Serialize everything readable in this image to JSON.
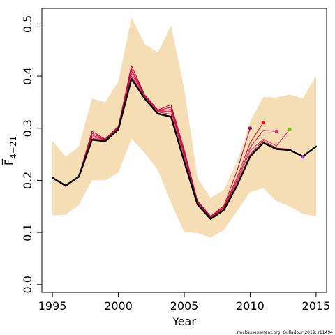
{
  "chart_data": {
    "type": "line",
    "xlabel": "Year",
    "ylabel": "F̅",
    "ylabel_sub": "4−21",
    "xlim": [
      1994.2,
      2015.8
    ],
    "ylim": [
      -0.015,
      0.53
    ],
    "xticks": [
      1995,
      2000,
      2005,
      2010,
      2015
    ],
    "yticks": [
      0.0,
      0.1,
      0.2,
      0.3,
      0.4,
      0.5
    ],
    "ytick_labels": [
      "0.0",
      "0.1",
      "0.2",
      "0.3",
      "0.4",
      "0.5"
    ],
    "grid": false,
    "band_color": "#f5deb3",
    "confidence_band": {
      "x": [
        1995,
        1996,
        1997,
        1998,
        1999,
        2000,
        2001,
        2002,
        2003,
        2004,
        2005,
        2006,
        2007,
        2008,
        2009,
        2010,
        2011,
        2012,
        2013,
        2014,
        2015
      ],
      "lower": [
        0.133,
        0.134,
        0.153,
        0.2,
        0.2,
        0.215,
        0.28,
        0.253,
        0.22,
        0.157,
        0.101,
        0.099,
        0.09,
        0.105,
        0.141,
        0.178,
        0.185,
        0.16,
        0.15,
        0.136,
        0.131
      ],
      "upper": [
        0.276,
        0.245,
        0.265,
        0.357,
        0.35,
        0.39,
        0.512,
        0.462,
        0.445,
        0.497,
        0.375,
        0.205,
        0.166,
        0.182,
        0.235,
        0.313,
        0.36,
        0.359,
        0.365,
        0.357,
        0.401
      ]
    },
    "series": [
      {
        "color": "#000000",
        "width": 2.4,
        "x": [
          1995,
          1996,
          1997,
          1998,
          1999,
          2000,
          2001,
          2002,
          2003,
          2004,
          2005,
          2006,
          2007,
          2008,
          2009,
          2010,
          2011,
          2012,
          2013,
          2014,
          2015
        ],
        "y": [
          0.205,
          0.19,
          0.207,
          0.278,
          0.275,
          0.298,
          0.395,
          0.357,
          0.328,
          0.322,
          0.236,
          0.154,
          0.126,
          0.143,
          0.19,
          0.246,
          0.272,
          0.26,
          0.258,
          0.246,
          0.265
        ]
      },
      {
        "color": "#c2185b",
        "width": 1,
        "x": [
          1995,
          1996,
          1997,
          1998,
          1999,
          2000,
          2001,
          2002,
          2003,
          2004,
          2005,
          2006,
          2007,
          2008,
          2009,
          2010,
          2011,
          2012,
          2013,
          2014
        ],
        "y": [
          0.205,
          0.19,
          0.207,
          0.281,
          0.276,
          0.3,
          0.4,
          0.359,
          0.331,
          0.327,
          0.24,
          0.156,
          0.127,
          0.144,
          0.192,
          0.25,
          0.276,
          0.262,
          0.26,
          0.245
        ],
        "end_marker": true
      },
      {
        "color": "#e6286b",
        "width": 1,
        "x": [
          1995,
          1996,
          1997,
          1998,
          1999,
          2000,
          2001,
          2002,
          2003,
          2004,
          2005,
          2006,
          2007,
          2008,
          2009,
          2010,
          2011,
          2012,
          2013
        ],
        "y": [
          0.205,
          0.189,
          0.207,
          0.284,
          0.276,
          0.301,
          0.405,
          0.361,
          0.332,
          0.333,
          0.246,
          0.158,
          0.128,
          0.146,
          0.196,
          0.257,
          0.279,
          0.266,
          0.298
        ],
        "end_marker": true,
        "end_color": "#66cc00"
      },
      {
        "color": "#c0185a",
        "width": 1,
        "x": [
          1995,
          1996,
          1997,
          1998,
          1999,
          2000,
          2001,
          2002,
          2003,
          2004,
          2005,
          2006,
          2007,
          2008,
          2009,
          2010,
          2011,
          2012
        ],
        "y": [
          0.206,
          0.189,
          0.207,
          0.287,
          0.277,
          0.302,
          0.41,
          0.362,
          0.333,
          0.336,
          0.25,
          0.159,
          0.129,
          0.147,
          0.2,
          0.263,
          0.296,
          0.294
        ],
        "end_marker": true,
        "end_color": "#e6286b"
      },
      {
        "color": "#e6001f",
        "width": 1,
        "x": [
          1995,
          1996,
          1997,
          1998,
          1999,
          2000,
          2001,
          2002,
          2003,
          2004,
          2005,
          2006,
          2007,
          2008,
          2009,
          2010,
          2011
        ],
        "y": [
          0.206,
          0.188,
          0.208,
          0.29,
          0.278,
          0.303,
          0.414,
          0.363,
          0.334,
          0.34,
          0.254,
          0.16,
          0.13,
          0.149,
          0.205,
          0.272,
          0.311
        ],
        "end_marker": true,
        "end_color": "#ff0000"
      },
      {
        "color": "#b0004a",
        "width": 1,
        "x": [
          1995,
          1996,
          1997,
          1998,
          1999,
          2000,
          2001,
          2002,
          2003,
          2004,
          2005,
          2006,
          2007,
          2008,
          2009,
          2010
        ],
        "y": [
          0.206,
          0.188,
          0.208,
          0.294,
          0.279,
          0.304,
          0.42,
          0.364,
          0.335,
          0.345,
          0.258,
          0.161,
          0.131,
          0.151,
          0.218,
          0.3
        ],
        "end_marker": true,
        "end_color": "#a0005a"
      }
    ],
    "end_markers": [
      {
        "x": 2010,
        "y": 0.3,
        "color": "#a0005a"
      },
      {
        "x": 2011,
        "y": 0.311,
        "color": "#ff0000"
      },
      {
        "x": 2012,
        "y": 0.294,
        "color": "#e6286b"
      },
      {
        "x": 2013,
        "y": 0.298,
        "color": "#66cc00"
      },
      {
        "x": 2014,
        "y": 0.245,
        "color": "#9933cc"
      }
    ]
  },
  "credit": "stockassessment.org, Gulladour 2019, r11494"
}
